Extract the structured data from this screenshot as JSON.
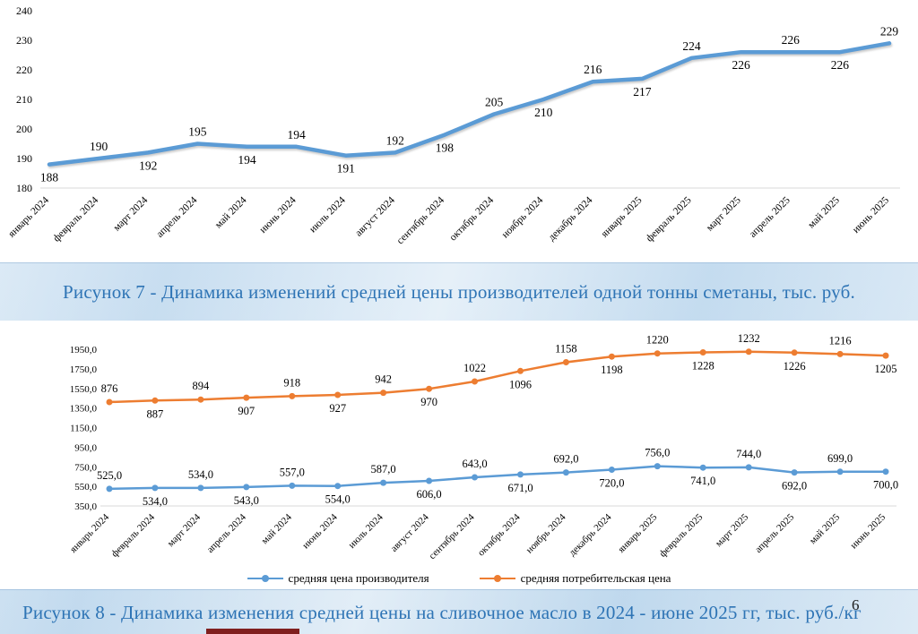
{
  "page": {
    "number": "6"
  },
  "chart_data": [
    {
      "type": "line",
      "title": "Рисунок 7 - Динамика изменений средней цены производителей одной тонны сметаны, тыс. руб.",
      "categories": [
        "январь 2024",
        "февраль 2024",
        "март 2024",
        "апрель 2024",
        "май 2024",
        "июнь 2024",
        "июль 2024",
        "август 2024",
        "сентябрь 2024",
        "октябрь 2024",
        "ноябрь 2024",
        "декабрь 2024",
        "январь 2025",
        "февраль 2025",
        "март 2025",
        "апрель 2025",
        "май 2025",
        "июнь 2025"
      ],
      "series": [
        {
          "values": [
            188,
            190,
            192,
            195,
            194,
            194,
            191,
            192,
            198,
            205,
            210,
            216,
            217,
            224,
            226,
            226,
            226,
            229
          ],
          "labels": [
            "188",
            "190",
            "192",
            "195",
            "194",
            "194",
            "191",
            "192",
            "198",
            "205",
            "210",
            "216",
            "217",
            "224",
            "226",
            "226",
            "226",
            "229"
          ],
          "color": "#5B9BD5"
        }
      ],
      "ylim": [
        180,
        240
      ],
      "yticks": [
        "240",
        "230",
        "220",
        "210",
        "200",
        "190",
        "180"
      ],
      "grid": false,
      "legend_position": "none"
    },
    {
      "type": "line",
      "title": "Рисунок 8 - Динамика изменения средней цены на сливочное масло в 2024 - июне 2025 гг, тыс. руб./кг",
      "categories": [
        "январь 2024",
        "февраль 2024",
        "март 2024",
        "апрель 2024",
        "май 2024",
        "июнь 2024",
        "июль 2024",
        "август 2024",
        "сентябрь 2024",
        "октябрь 2024",
        "ноябрь 2024",
        "декабрь 2024",
        "январь 2025",
        "февраль 2025",
        "март 2025",
        "апрель 2025",
        "май 2025",
        "июнь 2025"
      ],
      "series": [
        {
          "name": "средняя цена производителя",
          "values": [
            525,
            534,
            534,
            543,
            557,
            554,
            587,
            606,
            643,
            671,
            692,
            720,
            756,
            741,
            744,
            692,
            699,
            700
          ],
          "labels": [
            "525,0",
            "534,0",
            "534,0",
            "543,0",
            "557,0",
            "554,0",
            "587,0",
            "606,0",
            "643,0",
            "671,0",
            "692,0",
            "720,0",
            "756,0",
            "741,0",
            "744,0",
            "692,0",
            "699,0",
            "700,0"
          ],
          "color": "#5B9BD5",
          "axis": "primary"
        },
        {
          "name": "средняя потребительская цена",
          "values": [
            876,
            887,
            894,
            907,
            918,
            927,
            942,
            970,
            1022,
            1096,
            1158,
            1198,
            1220,
            1228,
            1232,
            1226,
            1216,
            1205
          ],
          "labels": [
            "876",
            "887",
            "894",
            "907",
            "918",
            "927",
            "942",
            "970",
            "1022",
            "1096",
            "1158",
            "1198",
            "1220",
            "1228",
            "1232",
            "1226",
            "1216",
            "1205"
          ],
          "color": "#ED7D31",
          "axis": "secondary"
        }
      ],
      "ylim": [
        350,
        1950
      ],
      "yticks": [
        "1950,0",
        "1750,0",
        "1550,0",
        "1350,0",
        "1150,0",
        "950,0",
        "750,0",
        "550,0",
        "350,0"
      ],
      "grid": false,
      "legend_position": "bottom"
    }
  ]
}
